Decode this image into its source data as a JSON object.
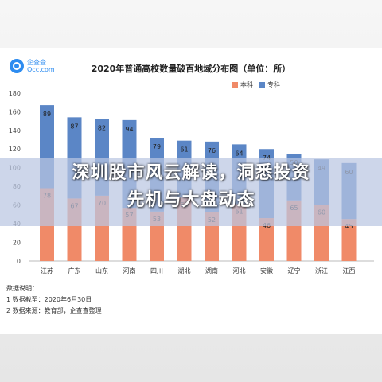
{
  "logo": {
    "name": "企查查",
    "domain": "Qcc.com"
  },
  "colors": {
    "benke": "#f08a68",
    "zhuanke": "#5b86c6"
  },
  "headline": {
    "line1": "深圳股市风云解读，洞悉投资",
    "line2": "先机与大盘动态"
  },
  "notes": {
    "heading": "数据说明：",
    "line1": "1 数据截至：2020年6月30日",
    "line2": "2 数据来源：教育部，企查查整理"
  },
  "chart_data": {
    "type": "bar",
    "stacked": true,
    "title": "2020年普通高校数量破百地域分布图（单位：所）",
    "xlabel": "",
    "ylabel": "",
    "ylim": [
      0,
      180
    ],
    "yticks": [
      0,
      20,
      40,
      60,
      80,
      100,
      120,
      140,
      160,
      180
    ],
    "grid": false,
    "legend_position": "top-right",
    "categories": [
      "江苏",
      "广东",
      "山东",
      "河南",
      "四川",
      "湖北",
      "湖南",
      "河北",
      "安徽",
      "辽宁",
      "浙江",
      "江西"
    ],
    "series": [
      {
        "name": "本科",
        "values": [
          78,
          67,
          70,
          57,
          53,
          68,
          52,
          61,
          46,
          65,
          60,
          45
        ]
      },
      {
        "name": "专科",
        "values": [
          89,
          87,
          82,
          94,
          79,
          61,
          76,
          64,
          74,
          50,
          49,
          60
        ]
      }
    ]
  }
}
